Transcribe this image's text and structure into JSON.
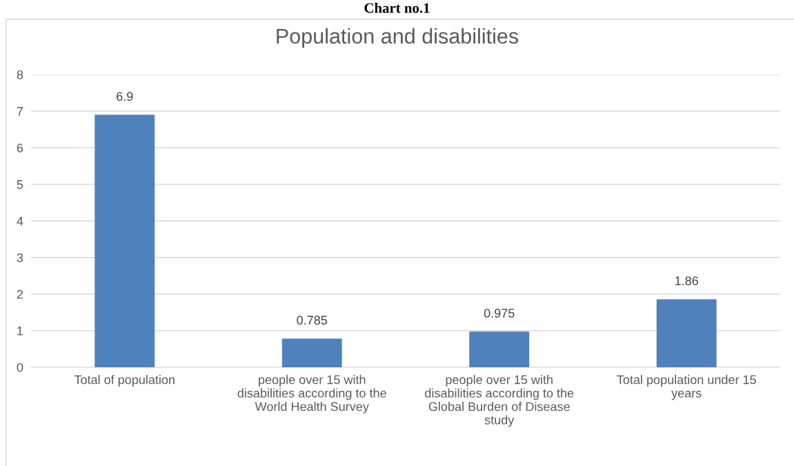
{
  "chart_data": {
    "type": "bar",
    "title": "Population and disabilities",
    "annotations": [
      "Chart no.1"
    ],
    "categories": [
      "Total of population",
      "people over 15 with\ndisabilities according to the\nWorld Health Survey",
      "people over 15 with\ndisabilities according to the\nGlobal Burden of Disease\nstudy",
      "Total population under 15\nyears"
    ],
    "values": [
      6.9,
      0.785,
      0.975,
      1.86
    ],
    "color": "#4f81bd",
    "ylim": [
      0,
      8
    ],
    "yticks": [
      0,
      1,
      2,
      3,
      4,
      5,
      6,
      7,
      8
    ],
    "grid": "y",
    "data_labels": true
  }
}
